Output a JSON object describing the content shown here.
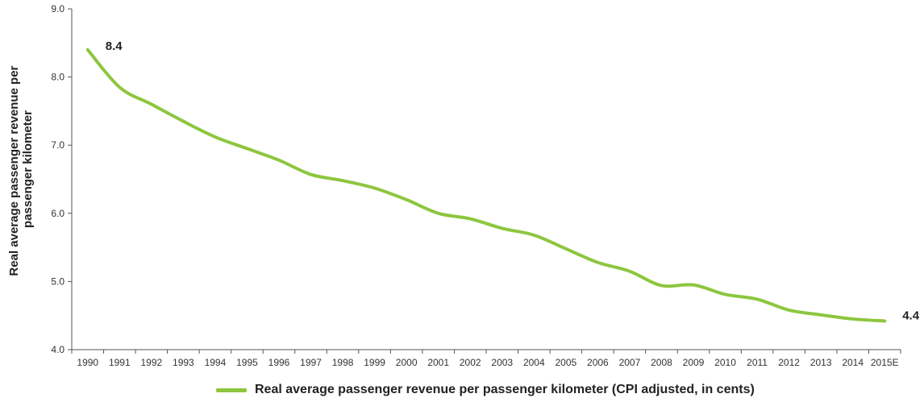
{
  "chart_data": {
    "type": "line",
    "ylabel": [
      "Real average passenger revenue per",
      "passenger kilometer"
    ],
    "xlabel": "",
    "ylim": [
      4.0,
      9.0
    ],
    "yticks": [
      "4.0",
      "5.0",
      "6.0",
      "7.0",
      "8.0",
      "9.0"
    ],
    "categories": [
      "1990",
      "1991",
      "1992",
      "1993",
      "1994",
      "1995",
      "1996",
      "1997",
      "1998",
      "1999",
      "2000",
      "2001",
      "2002",
      "2003",
      "2004",
      "2005",
      "2006",
      "2007",
      "2008",
      "2009",
      "2010",
      "2011",
      "2012",
      "2013",
      "2014",
      "2015E"
    ],
    "series": [
      {
        "name": "Real average passenger revenue per passenger kilometer (CPI adjusted, in cents)",
        "color": "#8dc63f",
        "values": [
          8.4,
          7.85,
          7.6,
          7.35,
          7.12,
          6.95,
          6.78,
          6.57,
          6.48,
          6.37,
          6.2,
          6.0,
          5.92,
          5.78,
          5.68,
          5.48,
          5.28,
          5.15,
          4.94,
          4.95,
          4.81,
          4.74,
          4.58,
          4.51,
          4.45,
          4.42
        ]
      }
    ],
    "data_labels": [
      {
        "index": 0,
        "text": "8.4"
      },
      {
        "index": 25,
        "text": "4.4"
      }
    ],
    "grid": false,
    "legend_position": "bottom"
  }
}
